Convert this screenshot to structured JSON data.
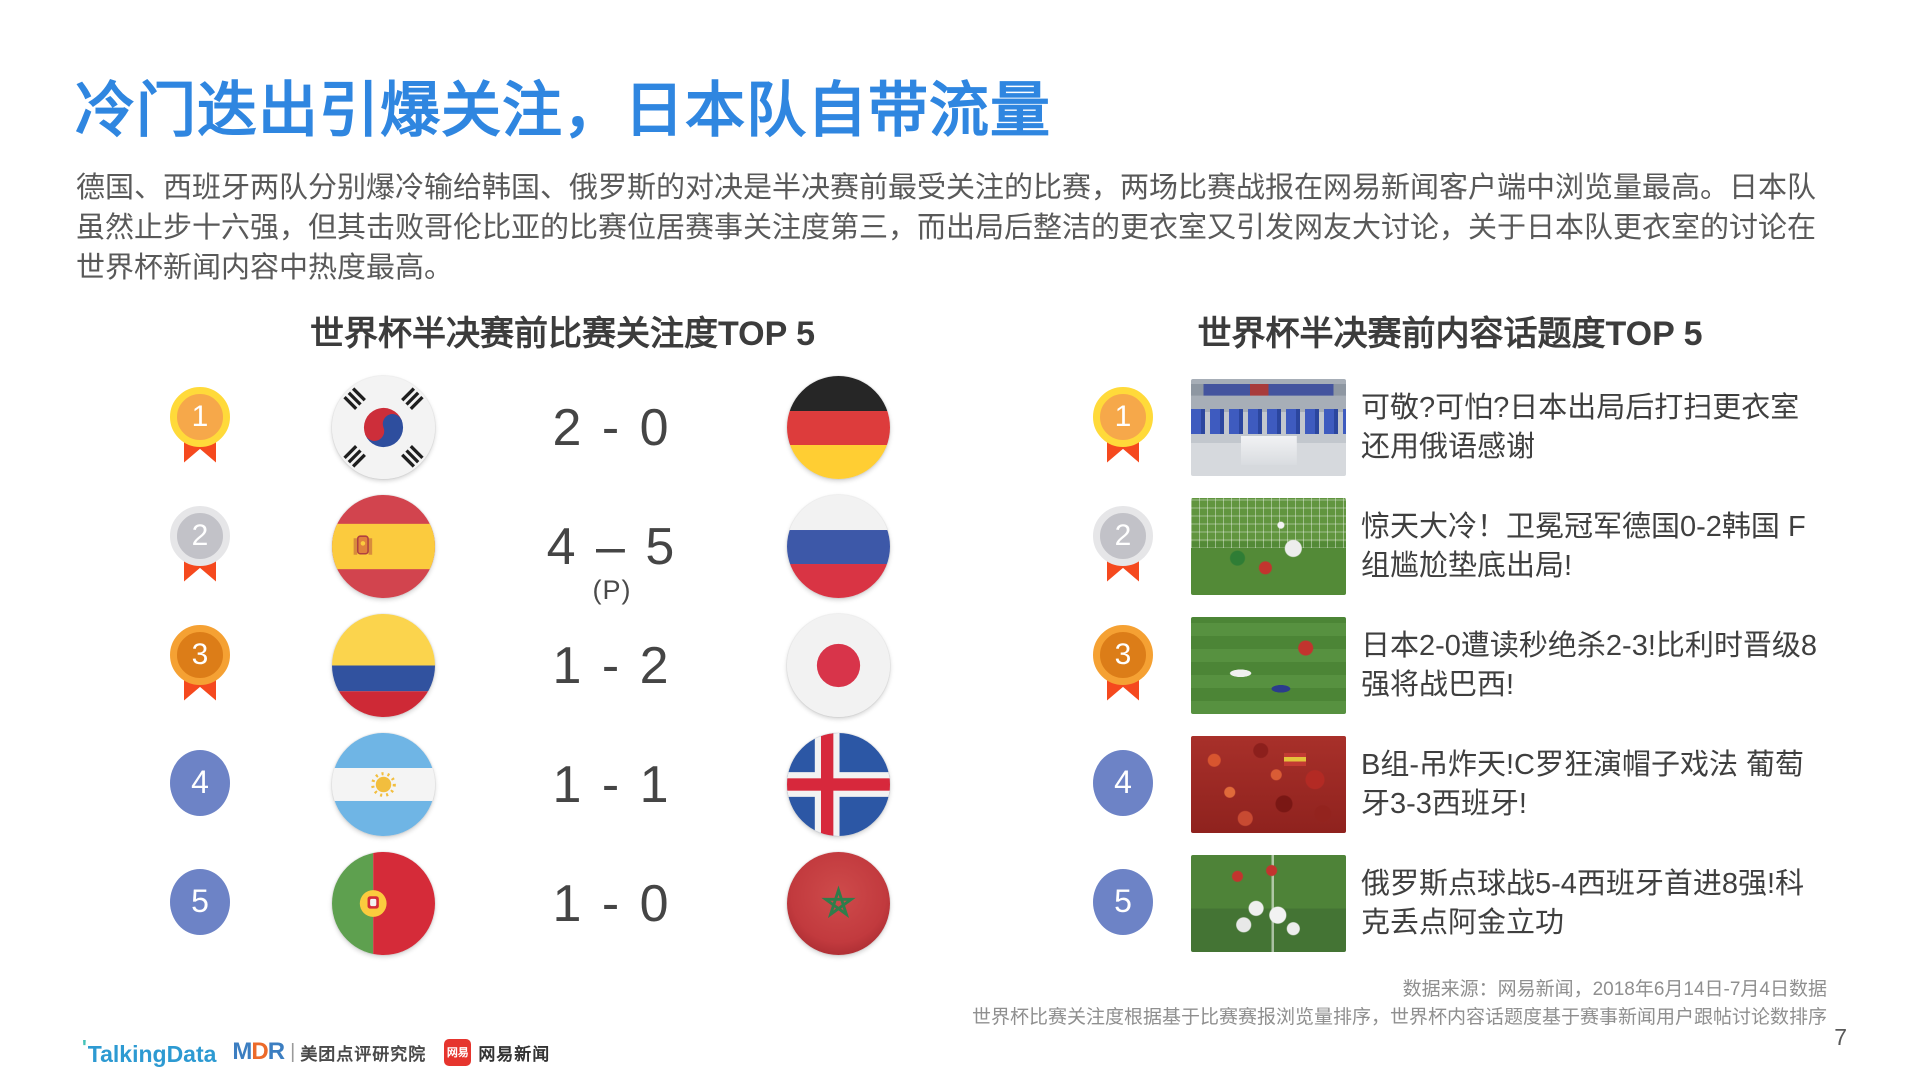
{
  "slide": {
    "title": "冷门迭出引爆关注，日本队自带流量",
    "paragraph": "德国、西班牙两队分别爆冷输给韩国、俄罗斯的对决是半决赛前最受关注的比赛，两场比赛战报在网易新闻客户端中浏览量最高。日本队虽然止步十六强，但其击败哥伦比亚的比赛位居赛事关注度第三，而出局后整洁的更衣室又引发网友大讨论，关于日本队更衣室的讨论在世界杯新闻内容中热度最高。",
    "page_number": "7"
  },
  "match_ranking": {
    "title": "世界杯半决赛前比赛关注度TOP 5",
    "rows": [
      {
        "rank": "1",
        "tier": "gold",
        "home_flag": "south-korea",
        "score": "2 - 0",
        "away_flag": "germany"
      },
      {
        "rank": "2",
        "tier": "silver",
        "home_flag": "spain",
        "score": "4 – 5",
        "score_note": "(P)",
        "away_flag": "russia"
      },
      {
        "rank": "3",
        "tier": "bronze",
        "home_flag": "colombia",
        "score": "1 - 2",
        "away_flag": "japan"
      },
      {
        "rank": "4",
        "tier": "plain",
        "home_flag": "argentina",
        "score": "1 - 1",
        "away_flag": "iceland"
      },
      {
        "rank": "5",
        "tier": "plain",
        "home_flag": "portugal",
        "score": "1 - 0",
        "away_flag": "morocco"
      }
    ]
  },
  "topic_ranking": {
    "title": "世界杯半决赛前内容话题度TOP 5",
    "rows": [
      {
        "rank": "1",
        "tier": "gold",
        "thumb": "locker-room",
        "headline": "可敬?可怕?日本出局后打扫更衣室 还用俄语感谢"
      },
      {
        "rank": "2",
        "tier": "silver",
        "thumb": "germany-upset",
        "headline": "惊天大冷！卫冕冠军德国0-2韩国 F组尴尬垫底出局!"
      },
      {
        "rank": "3",
        "tier": "bronze",
        "thumb": "japan-belgium",
        "headline": "日本2-0遭读秒绝杀2-3!比利时晋级8强将战巴西!"
      },
      {
        "rank": "4",
        "tier": "plain",
        "thumb": "red-fans",
        "headline": "B组-吊炸天!C罗狂演帽子戏法 葡萄牙3-3西班牙!"
      },
      {
        "rank": "5",
        "tier": "plain",
        "thumb": "russia-spain",
        "headline": "俄罗斯点球战5-4西班牙首进8强!科克丢点阿金立功"
      }
    ]
  },
  "footer": {
    "source_line1": "数据来源：网易新闻，2018年6月14日-7月4日数据",
    "source_line2": "世界杯比赛关注度根据基于比赛赛报浏览量排序，世界杯内容话题度基于赛事新闻用户跟帖讨论数排序",
    "logos": {
      "talkingdata": "TalkingData",
      "mdr_m": "M",
      "mdr_d": "D",
      "mdr_r": "R",
      "mdr_divider": "|",
      "mdr_suffix": "美团点评研究院",
      "netease_badge": "网易",
      "netease": "网易新闻"
    }
  },
  "colors": {
    "title_blue": "#2F86E0",
    "body_gray": "#595959",
    "ribbon_red": "#F5491E",
    "gold": "#FFDA3A",
    "silver": "#E6E6E8",
    "bronze": "#F5A133",
    "rank_blue": "#6D83C6"
  }
}
